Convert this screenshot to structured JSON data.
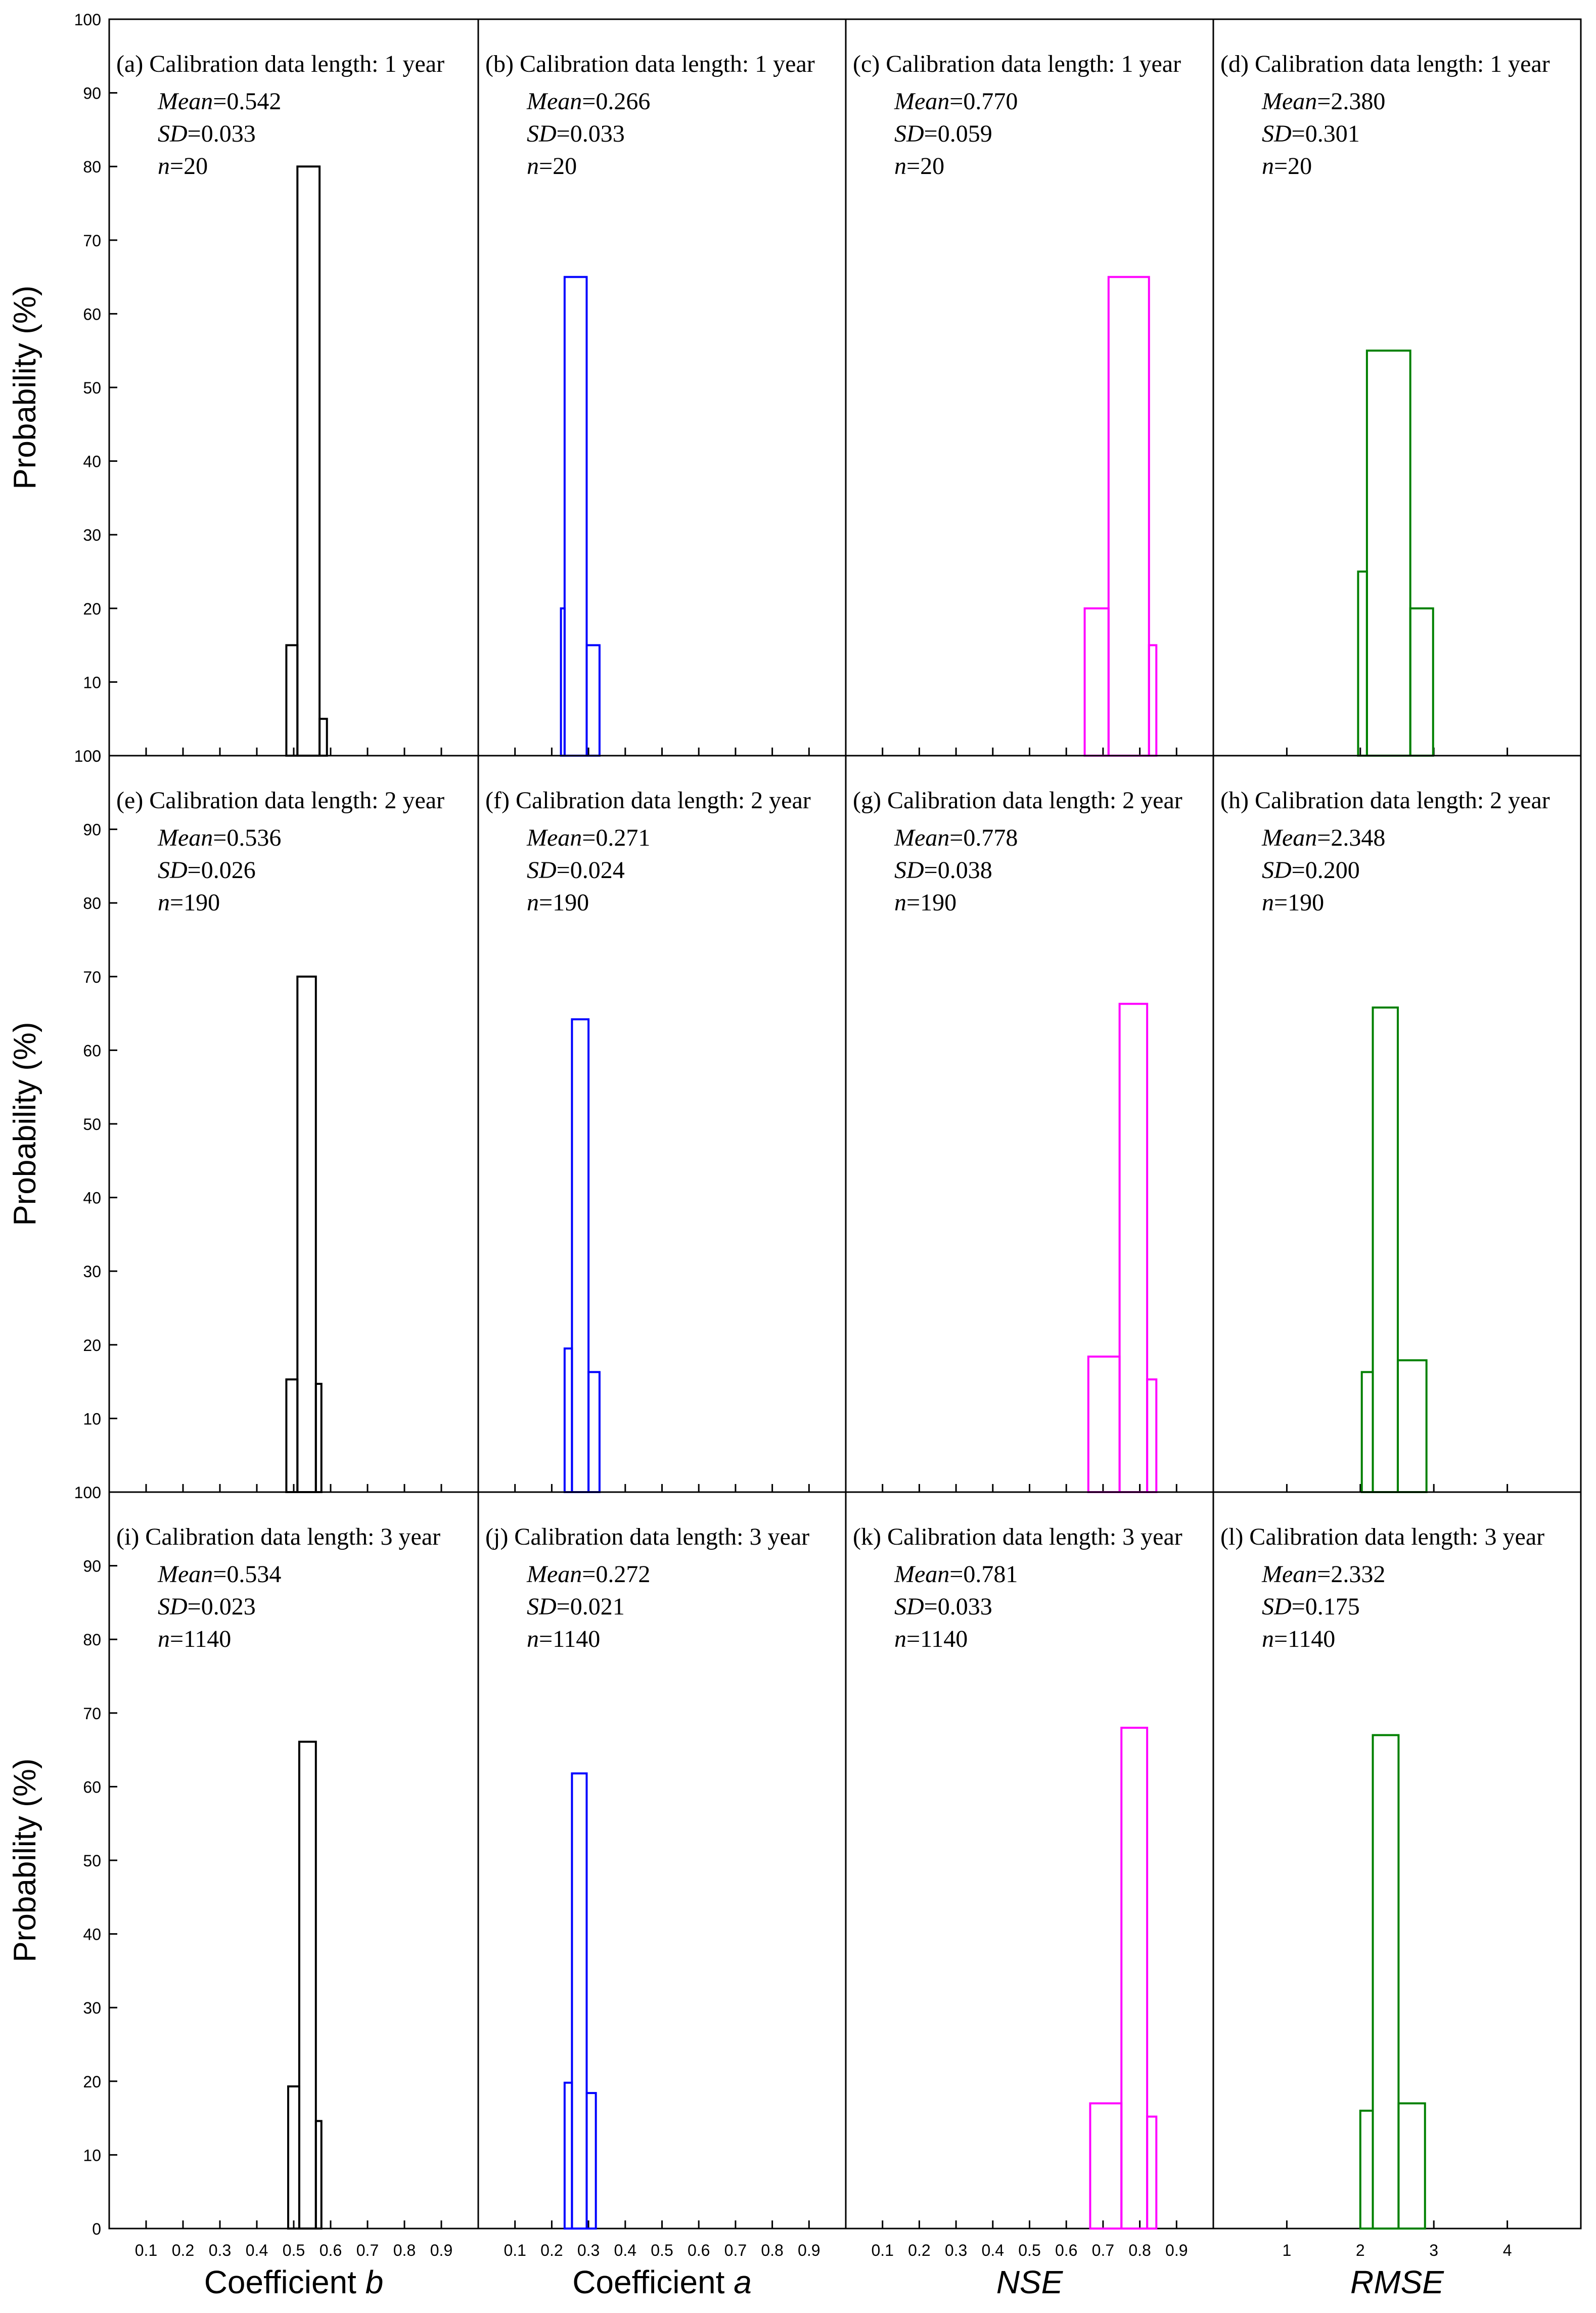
{
  "figure": {
    "ylabel": "Probability (%)",
    "y_ticks": [
      0,
      10,
      20,
      30,
      40,
      50,
      60,
      70,
      80,
      90,
      100
    ],
    "stats_labels": {
      "mean": "Mean",
      "sd": "SD",
      "n": "n"
    },
    "column_xlabels": [
      {
        "text": "Coefficient ",
        "italic_part": "b"
      },
      {
        "text": "Coefficient ",
        "italic_part": "a"
      },
      {
        "text": "",
        "italic_part": "NSE"
      },
      {
        "text": "",
        "italic_part": "RMSE"
      }
    ],
    "column_axes": [
      {
        "xlim": [
          0,
          1
        ],
        "ticks": [
          0.1,
          0.2,
          0.3,
          0.4,
          0.5,
          0.6,
          0.7,
          0.8,
          0.9
        ],
        "tick_labels": [
          "0.1",
          "0.2",
          "0.3",
          "0.4",
          "0.5",
          "0.6",
          "0.7",
          "0.8",
          "0.9"
        ]
      },
      {
        "xlim": [
          0,
          1
        ],
        "ticks": [
          0.1,
          0.2,
          0.3,
          0.4,
          0.5,
          0.6,
          0.7,
          0.8,
          0.9
        ],
        "tick_labels": [
          "0.1",
          "0.2",
          "0.3",
          "0.4",
          "0.5",
          "0.6",
          "0.7",
          "0.8",
          "0.9"
        ]
      },
      {
        "xlim": [
          0,
          1
        ],
        "ticks": [
          0.1,
          0.2,
          0.3,
          0.4,
          0.5,
          0.6,
          0.7,
          0.8,
          0.9
        ],
        "tick_labels": [
          "0.1",
          "0.2",
          "0.3",
          "0.4",
          "0.5",
          "0.6",
          "0.7",
          "0.8",
          "0.9"
        ]
      },
      {
        "xlim": [
          0,
          5
        ],
        "ticks": [
          1,
          2,
          3,
          4
        ],
        "tick_labels": [
          "1",
          "2",
          "3",
          "4"
        ]
      }
    ]
  },
  "chart_data": [
    {
      "type": "bar",
      "panel": "a",
      "row": 0,
      "col": 0,
      "title": "(a) Calibration data length: 1 year",
      "color": "#000000",
      "mean": "0.542",
      "sd": "0.033",
      "n": "20",
      "ylim": [
        0,
        100
      ],
      "bins": [
        {
          "x0": 0.48,
          "x1": 0.51,
          "value": 15
        },
        {
          "x0": 0.51,
          "x1": 0.57,
          "value": 80
        },
        {
          "x0": 0.57,
          "x1": 0.59,
          "value": 5
        }
      ]
    },
    {
      "type": "bar",
      "panel": "b",
      "row": 0,
      "col": 1,
      "title": "(b) Calibration data length: 1 year",
      "color": "#0000ff",
      "mean": "0.266",
      "sd": "0.033",
      "n": "20",
      "ylim": [
        0,
        100
      ],
      "bins": [
        {
          "x0": 0.225,
          "x1": 0.235,
          "value": 20
        },
        {
          "x0": 0.235,
          "x1": 0.295,
          "value": 65
        },
        {
          "x0": 0.295,
          "x1": 0.33,
          "value": 15
        }
      ]
    },
    {
      "type": "bar",
      "panel": "c",
      "row": 0,
      "col": 2,
      "title": "(c) Calibration data length: 1 year",
      "color": "#ff00ff",
      "mean": "0.770",
      "sd": "0.059",
      "n": "20",
      "ylim": [
        0,
        100
      ],
      "bins": [
        {
          "x0": 0.65,
          "x1": 0.715,
          "value": 20
        },
        {
          "x0": 0.715,
          "x1": 0.825,
          "value": 65
        },
        {
          "x0": 0.825,
          "x1": 0.845,
          "value": 15
        }
      ]
    },
    {
      "type": "bar",
      "panel": "d",
      "row": 0,
      "col": 3,
      "title": "(d) Calibration data length: 1 year",
      "color": "#008000",
      "mean": "2.380",
      "sd": "0.301",
      "n": "20",
      "ylim": [
        0,
        100
      ],
      "bins": [
        {
          "x0": 1.97,
          "x1": 2.09,
          "value": 25
        },
        {
          "x0": 2.09,
          "x1": 2.68,
          "value": 55
        },
        {
          "x0": 2.68,
          "x1": 2.99,
          "value": 20
        }
      ]
    },
    {
      "type": "bar",
      "panel": "e",
      "row": 1,
      "col": 0,
      "title": "(e) Calibration data length: 2 year",
      "color": "#000000",
      "mean": "0.536",
      "sd": "0.026",
      "n": "190",
      "ylim": [
        0,
        100
      ],
      "bins": [
        {
          "x0": 0.48,
          "x1": 0.51,
          "value": 15.3
        },
        {
          "x0": 0.51,
          "x1": 0.56,
          "value": 70
        },
        {
          "x0": 0.56,
          "x1": 0.575,
          "value": 14.7
        }
      ]
    },
    {
      "type": "bar",
      "panel": "f",
      "row": 1,
      "col": 1,
      "title": "(f) Calibration data length: 2 year",
      "color": "#0000ff",
      "mean": "0.271",
      "sd": "0.024",
      "n": "190",
      "ylim": [
        0,
        100
      ],
      "bins": [
        {
          "x0": 0.235,
          "x1": 0.255,
          "value": 19.5
        },
        {
          "x0": 0.255,
          "x1": 0.3,
          "value": 64.2
        },
        {
          "x0": 0.3,
          "x1": 0.33,
          "value": 16.3
        }
      ]
    },
    {
      "type": "bar",
      "panel": "g",
      "row": 1,
      "col": 2,
      "title": "(g) Calibration data length: 2 year",
      "color": "#ff00ff",
      "mean": "0.778",
      "sd": "0.038",
      "n": "190",
      "ylim": [
        0,
        100
      ],
      "bins": [
        {
          "x0": 0.66,
          "x1": 0.745,
          "value": 18.4
        },
        {
          "x0": 0.745,
          "x1": 0.82,
          "value": 66.3
        },
        {
          "x0": 0.82,
          "x1": 0.845,
          "value": 15.3
        }
      ]
    },
    {
      "type": "bar",
      "panel": "h",
      "row": 1,
      "col": 3,
      "title": "(h) Calibration data length: 2 year",
      "color": "#008000",
      "mean": "2.348",
      "sd": "0.200",
      "n": "190",
      "ylim": [
        0,
        100
      ],
      "bins": [
        {
          "x0": 2.02,
          "x1": 2.17,
          "value": 16.3
        },
        {
          "x0": 2.17,
          "x1": 2.51,
          "value": 65.8
        },
        {
          "x0": 2.51,
          "x1": 2.9,
          "value": 17.9
        }
      ]
    },
    {
      "type": "bar",
      "panel": "i",
      "row": 2,
      "col": 0,
      "title": "(i) Calibration data length: 3 year",
      "color": "#000000",
      "mean": "0.534",
      "sd": "0.023",
      "n": "1140",
      "ylim": [
        0,
        100
      ],
      "bins": [
        {
          "x0": 0.485,
          "x1": 0.515,
          "value": 19.3
        },
        {
          "x0": 0.515,
          "x1": 0.56,
          "value": 66.1
        },
        {
          "x0": 0.56,
          "x1": 0.575,
          "value": 14.6
        }
      ]
    },
    {
      "type": "bar",
      "panel": "j",
      "row": 2,
      "col": 1,
      "title": "(j) Calibration data length: 3 year",
      "color": "#0000ff",
      "mean": "0.272",
      "sd": "0.021",
      "n": "1140",
      "ylim": [
        0,
        100
      ],
      "bins": [
        {
          "x0": 0.235,
          "x1": 0.255,
          "value": 19.8
        },
        {
          "x0": 0.255,
          "x1": 0.295,
          "value": 61.8
        },
        {
          "x0": 0.295,
          "x1": 0.32,
          "value": 18.4
        }
      ]
    },
    {
      "type": "bar",
      "panel": "k",
      "row": 2,
      "col": 2,
      "title": "(k) Calibration data length: 3 year",
      "color": "#ff00ff",
      "mean": "0.781",
      "sd": "0.033",
      "n": "1140",
      "ylim": [
        0,
        100
      ],
      "bins": [
        {
          "x0": 0.665,
          "x1": 0.75,
          "value": 17
        },
        {
          "x0": 0.75,
          "x1": 0.82,
          "value": 68
        },
        {
          "x0": 0.82,
          "x1": 0.845,
          "value": 15.2
        }
      ]
    },
    {
      "type": "bar",
      "panel": "l",
      "row": 2,
      "col": 3,
      "title": "(l) Calibration data length: 3 year",
      "color": "#008000",
      "mean": "2.332",
      "sd": "0.175",
      "n": "1140",
      "ylim": [
        0,
        100
      ],
      "bins": [
        {
          "x0": 2.0,
          "x1": 2.17,
          "value": 16
        },
        {
          "x0": 2.17,
          "x1": 2.52,
          "value": 67
        },
        {
          "x0": 2.52,
          "x1": 2.88,
          "value": 17
        }
      ]
    }
  ]
}
